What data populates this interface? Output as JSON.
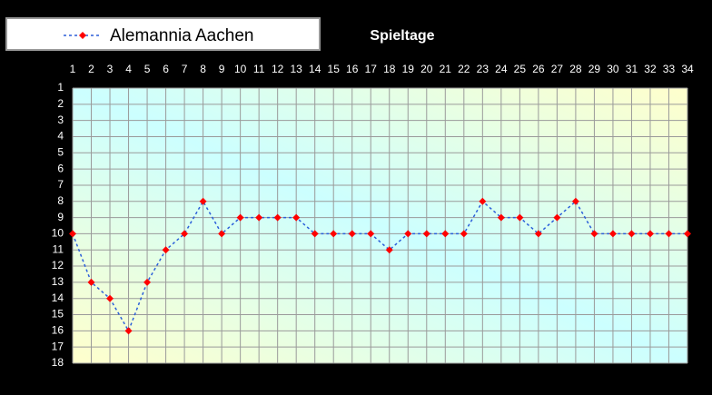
{
  "chart_data": {
    "type": "line",
    "title": "Spieltage",
    "x": [
      1,
      2,
      3,
      4,
      5,
      6,
      7,
      8,
      9,
      10,
      11,
      12,
      13,
      14,
      15,
      16,
      17,
      18,
      19,
      20,
      21,
      22,
      23,
      24,
      25,
      26,
      27,
      28,
      29,
      30,
      31,
      32,
      33,
      34
    ],
    "series": [
      {
        "name": "Alemannia Aachen",
        "color": "#2b5fd9",
        "marker_color": "#ff0000",
        "values": [
          10,
          13,
          14,
          16,
          13,
          11,
          10,
          8,
          10,
          9,
          9,
          9,
          9,
          10,
          10,
          10,
          10,
          11,
          10,
          10,
          10,
          10,
          8,
          9,
          9,
          10,
          9,
          8,
          10,
          10,
          10,
          10,
          10,
          10
        ]
      }
    ],
    "xlim": [
      1,
      34
    ],
    "xticks": [
      1,
      2,
      3,
      4,
      5,
      6,
      7,
      8,
      9,
      10,
      11,
      12,
      13,
      14,
      15,
      16,
      17,
      18,
      19,
      20,
      21,
      22,
      23,
      24,
      25,
      26,
      27,
      28,
      29,
      30,
      31,
      32,
      33,
      34
    ],
    "ylim": [
      1,
      18
    ],
    "yticks": [
      1,
      2,
      3,
      4,
      5,
      6,
      7,
      8,
      9,
      10,
      11,
      12,
      13,
      14,
      15,
      16,
      17,
      18
    ],
    "y_inverted": true,
    "x_axis_position": "top",
    "grid": true,
    "line_style": "dashed",
    "legend_position": "top-left"
  }
}
